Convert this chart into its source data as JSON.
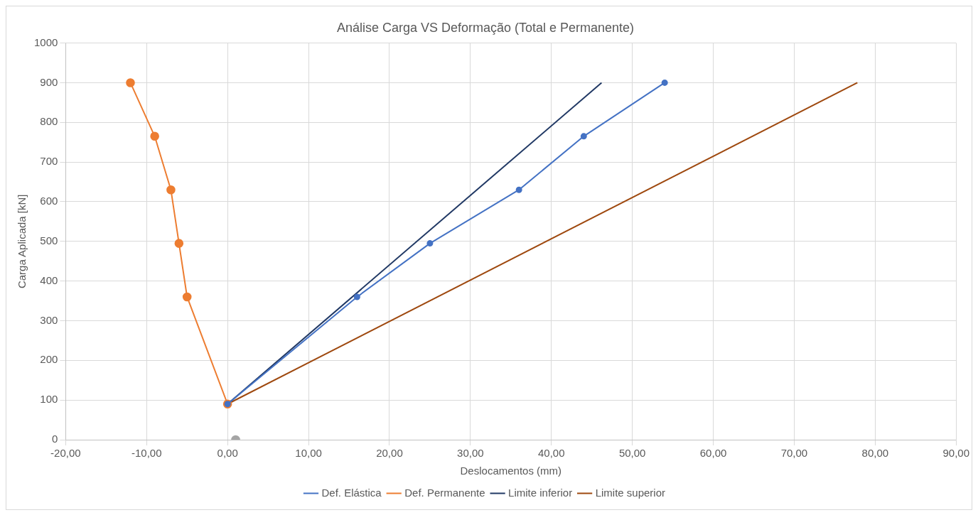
{
  "chart_data": {
    "type": "line",
    "title": "Análise Carga VS Deformação (Total e Permanente)",
    "xlabel": "Deslocamentos (mm)",
    "ylabel": "Carga Aplicada [kN]",
    "xlim": [
      -20,
      90
    ],
    "xticks": [
      {
        "value": -20,
        "label": "-20,00"
      },
      {
        "value": -10,
        "label": "-10,00"
      },
      {
        "value": 0,
        "label": "0,00"
      },
      {
        "value": 10,
        "label": "10,00"
      },
      {
        "value": 20,
        "label": "20,00"
      },
      {
        "value": 30,
        "label": "30,00"
      },
      {
        "value": 40,
        "label": "40,00"
      },
      {
        "value": 50,
        "label": "50,00"
      },
      {
        "value": 60,
        "label": "60,00"
      },
      {
        "value": 70,
        "label": "70,00"
      },
      {
        "value": 80,
        "label": "80,00"
      },
      {
        "value": 90,
        "label": "90,00"
      }
    ],
    "ylim": [
      0,
      1000
    ],
    "yticks": [
      0,
      100,
      200,
      300,
      400,
      500,
      600,
      700,
      800,
      900,
      1000
    ],
    "grid": true,
    "legend": "bottom",
    "line_style": "solid",
    "series": [
      {
        "name": "Def. Elástica",
        "color": "#4472c4",
        "marker": "circle",
        "x": [
          0,
          16,
          25,
          36,
          44,
          54
        ],
        "values": [
          90,
          360,
          495,
          630,
          765,
          900
        ]
      },
      {
        "name": "Def. Permanente",
        "color": "#ed7d31",
        "marker": "circle",
        "x": [
          0,
          -5,
          -6,
          -7,
          -9,
          -12
        ],
        "values": [
          90,
          360,
          495,
          630,
          765,
          900
        ]
      },
      {
        "name": "Limite inferior",
        "color": "#203864",
        "marker": "none",
        "x": [
          0,
          46.2
        ],
        "values": [
          90,
          900
        ]
      },
      {
        "name": "Limite superior",
        "color": "#9e480e",
        "marker": "none",
        "x": [
          0,
          77.8
        ],
        "values": [
          90,
          900
        ]
      },
      {
        "type": "scatter",
        "color": "#a5a5a5",
        "marker": "circle",
        "x": [
          1
        ],
        "values": [
          0
        ]
      }
    ]
  }
}
